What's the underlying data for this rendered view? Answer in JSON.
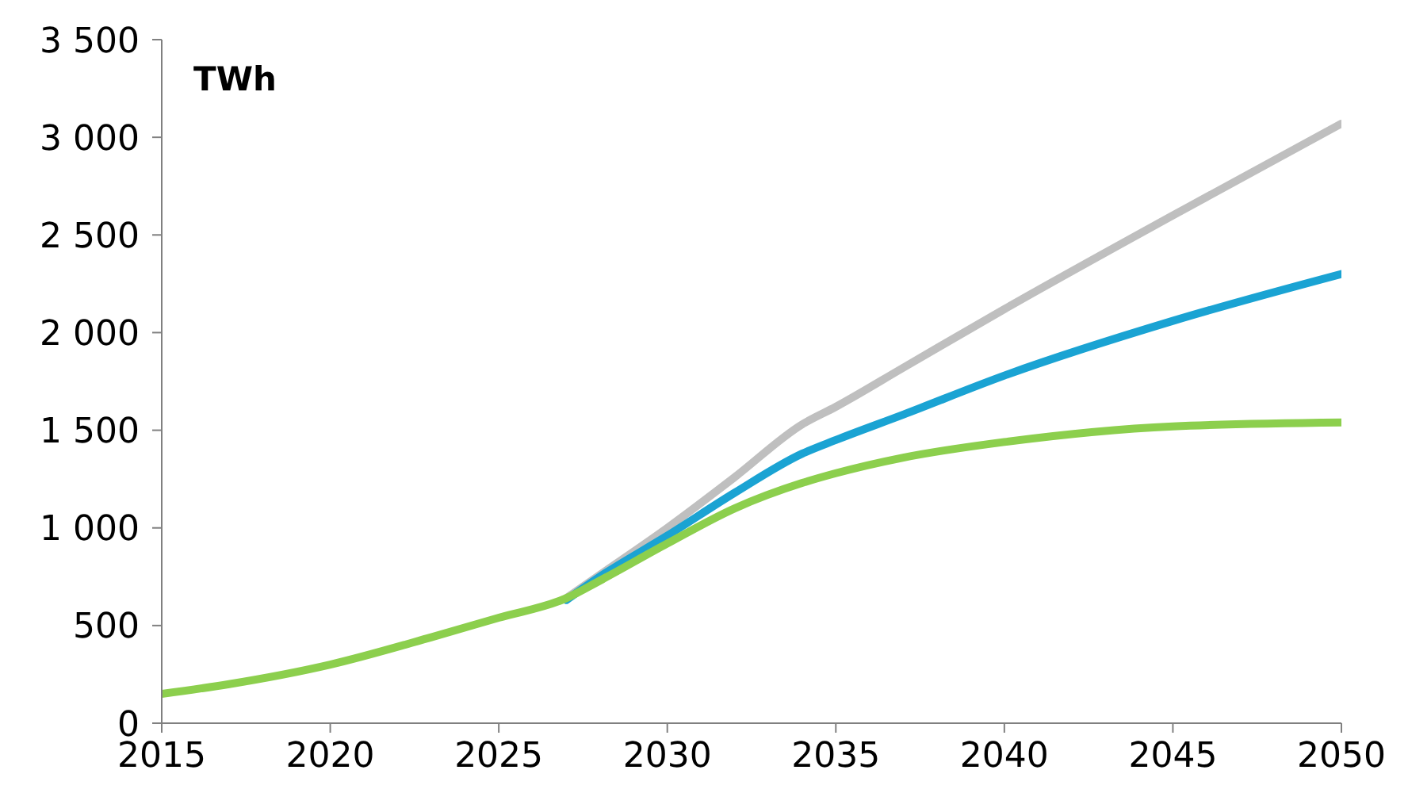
{
  "chart_data": {
    "type": "line",
    "ylabel": "TWh",
    "x": [
      2015,
      2017,
      2020,
      2023,
      2025,
      2027,
      2028,
      2030,
      2032,
      2034,
      2035,
      2037,
      2040,
      2045,
      2050
    ],
    "series": [
      {
        "color": "#bfbfbf",
        "values": [
          null,
          null,
          null,
          null,
          null,
          640,
          760,
          1000,
          1260,
          1530,
          1620,
          1820,
          2120,
          2600,
          3070
        ]
      },
      {
        "color": "#1aa3d3",
        "values": [
          null,
          null,
          null,
          null,
          null,
          630,
          750,
          960,
          1180,
          1380,
          1450,
          1580,
          1780,
          2060,
          2300
        ]
      },
      {
        "color": "#8ccf4d",
        "values": [
          150,
          200,
          300,
          440,
          540,
          640,
          730,
          920,
          1100,
          1230,
          1280,
          1360,
          1440,
          1520,
          1540
        ]
      }
    ],
    "xlim": [
      2015,
      2050
    ],
    "xticks": [
      2015,
      2020,
      2025,
      2030,
      2035,
      2040,
      2045,
      2050
    ],
    "ylim": [
      0,
      3500
    ],
    "yticks": [
      0,
      500,
      {
        "value": 1000,
        "label": "1 000"
      },
      {
        "value": 1500,
        "label": "1 500"
      },
      {
        "value": 2000,
        "label": "2 000"
      },
      {
        "value": 2500,
        "label": "2 500"
      },
      {
        "value": 3000,
        "label": "3 000"
      },
      {
        "value": 3500,
        "label": "3 500"
      }
    ],
    "grid": false,
    "legend": false,
    "marker": "none",
    "line_style": "solid"
  }
}
